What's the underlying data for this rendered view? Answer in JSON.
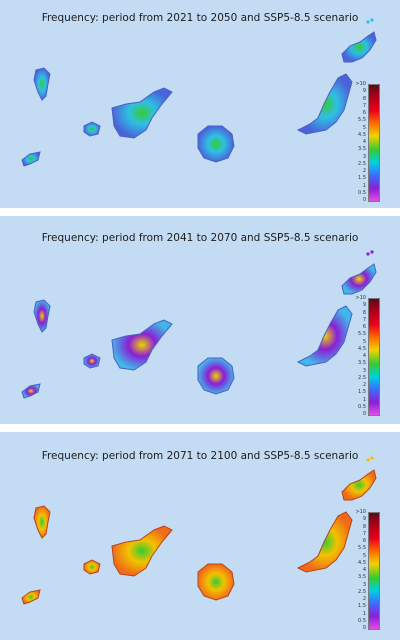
{
  "panels": [
    {
      "title": "Frequency: period from 2021 to 2050 and SSP5-8.5 scenario"
    },
    {
      "title": "Frequency: period from 2041 to 2070 and SSP5-8.5 scenario"
    },
    {
      "title": "Frequency: period from 2071 to 2100 and SSP5-8.5 scenario"
    }
  ],
  "legend": {
    "ticks": [
      ">10",
      "9",
      "8",
      "7",
      "6",
      "5.5",
      "5",
      "4.5",
      "4",
      "3.5",
      "3",
      "2.5",
      "2",
      "1.5",
      "1",
      "0.5",
      "0"
    ],
    "colors": [
      "#5c0b16",
      "#b3001b",
      "#e8001c",
      "#ff6a00",
      "#f2d200",
      "#33cc33",
      "#00d0e0",
      "#3a6cff",
      "#8a1fd6",
      "#e04ee6"
    ]
  },
  "colors": {
    "ocean": "#c3dcf3",
    "island_outline": "#4b5fc7"
  },
  "islands": [
    "La Palma",
    "El Hierro",
    "La Gomera",
    "Tenerife",
    "Gran Canaria",
    "Fuerteventura",
    "Lanzarote"
  ],
  "panel_island_fill": [
    {
      "base": "#4a63d9",
      "accent": "#2fbfe4",
      "hot": "#33cc33"
    },
    {
      "base": "#41b6e8",
      "accent": "#8a1fd6",
      "hot": "#f2d200"
    },
    {
      "base": "#f06a1a",
      "accent": "#f2c200",
      "hot": "#33cc33"
    }
  ]
}
